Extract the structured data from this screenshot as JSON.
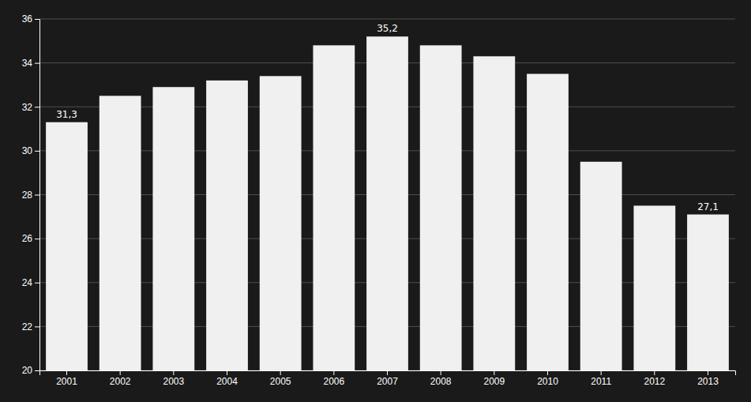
{
  "chart_data": {
    "type": "bar",
    "categories": [
      "2001",
      "2002",
      "2003",
      "2004",
      "2005",
      "2006",
      "2007",
      "2008",
      "2009",
      "2010",
      "2011",
      "2012",
      "2013"
    ],
    "values": [
      31.3,
      32.5,
      32.9,
      33.2,
      33.4,
      34.8,
      35.2,
      34.8,
      34.3,
      33.5,
      29.5,
      27.5,
      27.1
    ],
    "value_labels": [
      "31,3",
      null,
      null,
      null,
      null,
      null,
      "35,2",
      null,
      null,
      null,
      null,
      null,
      "27,1"
    ],
    "color": "#f0f0f0",
    "ylim": [
      20,
      36
    ],
    "yticks": [
      20,
      22,
      24,
      26,
      28,
      30,
      32,
      34,
      36
    ],
    "grid": true
  }
}
